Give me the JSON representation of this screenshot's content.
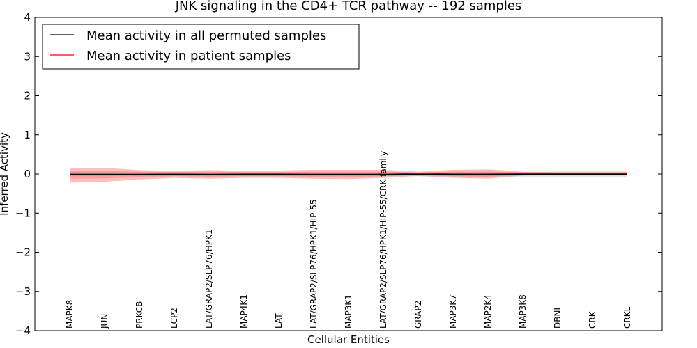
{
  "chart_data": {
    "type": "line",
    "title": "JNK signaling in the CD4+ TCR pathway -- 192 samples",
    "xlabel": "Cellular Entities",
    "ylabel": "Inferred Activity",
    "ylim": [
      -4,
      4
    ],
    "yticks": [
      4,
      3,
      2,
      1,
      0,
      -1,
      -2,
      -3,
      -4
    ],
    "ytick_labels": [
      "4",
      "3",
      "2",
      "1",
      "0",
      "−1",
      "−2",
      "−3",
      "−4"
    ],
    "grid": false,
    "legend_position": "top-left",
    "categories": [
      "MAPK8",
      "JUN",
      "PRKCB",
      "LCP2",
      "LAT/GRAP2/SLP76/HPK1",
      "MAP4K1",
      "LAT",
      "LAT/GRAP2/SLP76/HPK1/HIP-55",
      "MAP3K1",
      "LAT/GRAP2/SLP76/HPK1/HIP-55/CRK family",
      "GRAP2",
      "MAP3K7",
      "MAP2K4",
      "MAP3K8",
      "DBNL",
      "CRK",
      "CRKL"
    ],
    "series": [
      {
        "name": "Mean activity in all permuted samples",
        "color": "#000000",
        "values": [
          -0.01,
          -0.01,
          -0.01,
          -0.01,
          -0.01,
          -0.01,
          -0.01,
          -0.01,
          -0.01,
          -0.01,
          -0.01,
          -0.01,
          -0.01,
          -0.01,
          -0.01,
          -0.01,
          -0.01
        ],
        "band_lower": [
          -0.05,
          -0.05,
          -0.05,
          -0.05,
          -0.05,
          -0.05,
          -0.05,
          -0.05,
          -0.05,
          -0.05,
          -0.06,
          -0.06,
          -0.06,
          -0.07,
          -0.09,
          -0.09,
          -0.09
        ],
        "band_upper": [
          0.04,
          0.04,
          0.04,
          0.04,
          0.04,
          0.04,
          0.04,
          0.04,
          0.04,
          0.04,
          0.04,
          0.04,
          0.04,
          0.05,
          0.07,
          0.07,
          0.07
        ],
        "band_color": "#c0c0c0"
      },
      {
        "name": "Mean activity in patient samples",
        "color": "#ff0000",
        "values": [
          -0.02,
          -0.02,
          -0.01,
          0.0,
          -0.01,
          0.0,
          0.0,
          -0.01,
          -0.01,
          -0.01,
          0.02,
          0.0,
          0.0,
          0.01,
          0.01,
          0.01,
          0.01
        ],
        "band_lower": [
          -0.22,
          -0.2,
          -0.14,
          -0.1,
          -0.12,
          -0.1,
          -0.1,
          -0.12,
          -0.13,
          -0.1,
          -0.05,
          -0.1,
          -0.12,
          -0.04,
          -0.03,
          -0.03,
          -0.03
        ],
        "band_upper": [
          0.16,
          0.16,
          0.1,
          0.08,
          0.1,
          0.08,
          0.09,
          0.11,
          0.11,
          0.11,
          0.06,
          0.11,
          0.12,
          0.06,
          0.05,
          0.05,
          0.05
        ],
        "inner_lower": [
          -0.12,
          -0.11,
          -0.08,
          -0.06,
          -0.07,
          -0.06,
          -0.06,
          -0.07,
          -0.08,
          -0.06,
          -0.02,
          -0.06,
          -0.07,
          -0.02,
          -0.02,
          -0.02,
          -0.02
        ],
        "inner_upper": [
          0.09,
          0.09,
          0.06,
          0.05,
          0.06,
          0.05,
          0.05,
          0.06,
          0.06,
          0.06,
          0.04,
          0.06,
          0.07,
          0.04,
          0.03,
          0.03,
          0.03
        ],
        "band_color": "#ff0000"
      }
    ]
  }
}
